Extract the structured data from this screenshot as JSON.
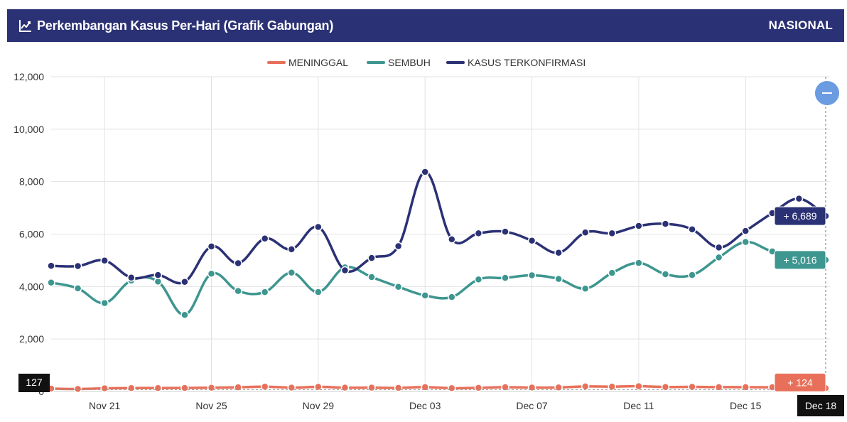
{
  "header": {
    "title": "Perkembangan Kasus Per-Hari (Grafik Gabungan)",
    "scope": "NASIONAL"
  },
  "colors": {
    "header_bg": "#2b3175",
    "meninggal": "#e8705a",
    "sembuh": "#3d968f",
    "terkonfirmasi": "#2b3175",
    "zoom_button": "#6b9be0"
  },
  "chart_data": {
    "type": "line",
    "x": [
      "Nov 19",
      "Nov 20",
      "Nov 21",
      "Nov 22",
      "Nov 23",
      "Nov 24",
      "Nov 25",
      "Nov 26",
      "Nov 27",
      "Nov 28",
      "Nov 29",
      "Nov 30",
      "Dec 01",
      "Dec 02",
      "Dec 03",
      "Dec 04",
      "Dec 05",
      "Dec 06",
      "Dec 07",
      "Dec 08",
      "Dec 09",
      "Dec 10",
      "Dec 11",
      "Dec 12",
      "Dec 13",
      "Dec 14",
      "Dec 15",
      "Dec 16",
      "Dec 17",
      "Dec 18"
    ],
    "x_tick_labels": [
      "Nov 21",
      "Nov 25",
      "Nov 29",
      "Dec 03",
      "Dec 07",
      "Dec 11",
      "Dec 15"
    ],
    "ylim": [
      0,
      12000
    ],
    "y_ticks": [
      "0",
      "2,000",
      "4,000",
      "6,000",
      "8,000",
      "10,000",
      "12,000"
    ],
    "grid": true,
    "legend_position": "top-center",
    "series": [
      {
        "name": "MENINGGAL",
        "values": [
          110,
          94,
          118,
          130,
          130,
          133,
          143,
          158,
          183,
          146,
          175,
          146,
          144,
          137,
          166,
          124,
          139,
          163,
          149,
          151,
          193,
          184,
          200,
          170,
          175,
          165,
          164,
          158,
          127,
          124
        ]
      },
      {
        "name": "SEMBUH",
        "values": [
          4150,
          3930,
          3370,
          4230,
          4190,
          2920,
          4490,
          3830,
          3790,
          4530,
          3790,
          4730,
          4360,
          3990,
          3660,
          3600,
          4270,
          4330,
          4430,
          4290,
          3920,
          4520,
          4900,
          4470,
          4440,
          5110,
          5700,
          5340,
          5260,
          5016
        ]
      },
      {
        "name": "KASUS TERKONFIRMASI",
        "values": [
          4790,
          4780,
          4990,
          4340,
          4440,
          4180,
          5530,
          4890,
          5830,
          5420,
          6270,
          4620,
          5090,
          5540,
          8370,
          5800,
          6030,
          6090,
          5750,
          5290,
          6060,
          6030,
          6310,
          6390,
          6180,
          5490,
          6120,
          6800,
          7350,
          6689
        ]
      }
    ],
    "tooltip": {
      "date": "Dec 18",
      "meninggal_label": "+ 124",
      "sembuh_label": "+ 5,016",
      "terkonfirmasi_label": "+ 6,689",
      "crosshair_value": "127"
    }
  }
}
